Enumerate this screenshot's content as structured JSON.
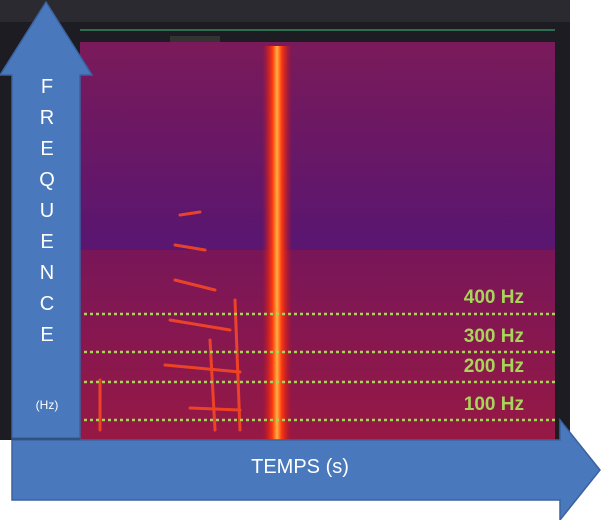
{
  "frequency_axis": {
    "label": "FREQUENCE",
    "unit": "(Hz)"
  },
  "time_axis": {
    "label": "TEMPS (s)"
  },
  "frequency_marks": [
    "400 Hz",
    "300 Hz",
    "200 Hz",
    "100 Hz"
  ]
}
